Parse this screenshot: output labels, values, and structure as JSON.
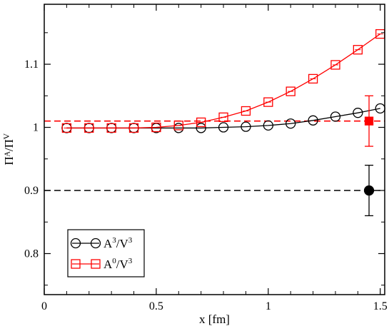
{
  "chart_data": {
    "type": "line",
    "title": "",
    "xlabel": "x [fm]",
    "ylabel": "Πᴬ/Πⱽ",
    "xlim": [
      0,
      1.52
    ],
    "ylim": [
      0.735,
      1.195
    ],
    "x_ticks": [
      0,
      0.5,
      1,
      1.5
    ],
    "x_tick_labels": [
      "0",
      "0.5",
      "1",
      "1.5"
    ],
    "y_ticks": [
      0.8,
      0.9,
      1,
      1.1
    ],
    "y_tick_labels": [
      "0.8",
      "0.9",
      "1",
      "1.1"
    ],
    "grid": false,
    "legend_position": "bottom-left",
    "series": [
      {
        "name": "A3/V3",
        "label_base": "A",
        "label_sup": "3",
        "label_base2": "/V",
        "label_sup2": "3",
        "color": "#000000",
        "marker": "circle",
        "x": [
          0.1,
          0.2,
          0.3,
          0.4,
          0.5,
          0.6,
          0.7,
          0.8,
          0.9,
          1.0,
          1.1,
          1.2,
          1.3,
          1.4,
          1.5
        ],
        "values": [
          0.999,
          0.999,
          0.999,
          0.999,
          0.999,
          0.999,
          0.999,
          1.0,
          1.001,
          1.003,
          1.006,
          1.011,
          1.017,
          1.023,
          1.03
        ]
      },
      {
        "name": "A0/V3",
        "label_base": "A",
        "label_sup": "0",
        "label_base2": "/V",
        "label_sup2": "3",
        "color": "#ff0000",
        "marker": "square",
        "x": [
          0.1,
          0.2,
          0.3,
          0.4,
          0.5,
          0.6,
          0.7,
          0.8,
          0.9,
          1.0,
          1.1,
          1.2,
          1.3,
          1.4,
          1.5
        ],
        "values": [
          0.999,
          0.999,
          0.999,
          0.999,
          1.0,
          1.003,
          1.008,
          1.016,
          1.026,
          1.04,
          1.057,
          1.077,
          1.099,
          1.123,
          1.148
        ]
      }
    ],
    "reference_lines": [
      {
        "y": 1.01,
        "color": "#ff0000",
        "style": "dashed"
      },
      {
        "y": 0.9,
        "color": "#000000",
        "style": "dashed"
      }
    ],
    "error_points": [
      {
        "x": 1.45,
        "y": 1.01,
        "err": 0.04,
        "color": "#ff0000",
        "marker": "filled-square"
      },
      {
        "x": 1.45,
        "y": 0.9,
        "err": 0.04,
        "color": "#000000",
        "marker": "filled-circle"
      }
    ]
  }
}
